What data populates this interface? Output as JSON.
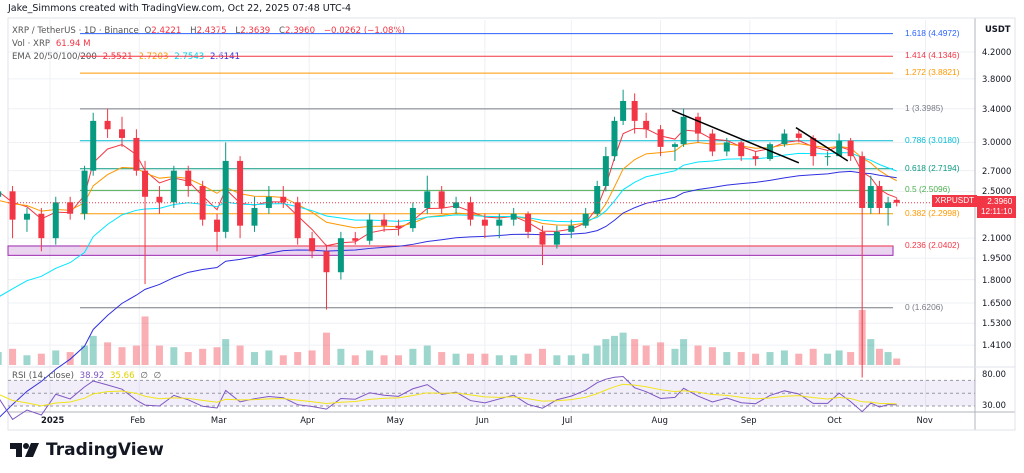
{
  "credit": "Jake_Simmons created with TradingView.com, Oct 22, 2025 07:48 UTC-4",
  "legend": {
    "symbol": "XRP / TetherUS · 1D · Binance",
    "o_label": "O",
    "o": "2.4221",
    "h_label": "H",
    "h": "2.4375",
    "l_label": "L",
    "l": "2.3639",
    "c_label": "C",
    "c": "2.3960",
    "change": "−0.0262 (−1.08%)",
    "vol_label": "Vol · XRP",
    "vol": "61.94 M",
    "ema_label": "EMA 20/50/100/200",
    "ema20": "2.5521",
    "ema50": "2.7203",
    "ema100": "2.7543",
    "ema200": "2.6141",
    "rsi_label": "RSI (14, close)",
    "rsi": "38.92",
    "rsi_ma": "35.66",
    "rsi_extra1": "∅",
    "rsi_extra2": "∅"
  },
  "price_axis": {
    "unit": "USDT",
    "ticks": [
      "4.2000",
      "3.8000",
      "3.4000",
      "3.0000",
      "2.7000",
      "2.5000",
      "2.1000",
      "1.9500",
      "1.8000",
      "1.6500",
      "1.5300",
      "1.4100"
    ],
    "rsi_ticks": [
      "80.00",
      "30.00"
    ]
  },
  "price_tag": {
    "symbol": "XRPUSDT",
    "price": "2.3960",
    "countdown": "12:11:10"
  },
  "time_axis": [
    "2025",
    "Feb",
    "Mar",
    "Apr",
    "May",
    "Jun",
    "Jul",
    "Aug",
    "Sep",
    "Oct",
    "Nov"
  ],
  "fib_levels": [
    {
      "label": "1.618 (4.4972)",
      "price": 4.4972,
      "color": "#2962ff"
    },
    {
      "label": "1.414 (4.1346)",
      "price": 4.1346,
      "color": "#f23645"
    },
    {
      "label": "1.272 (3.8821)",
      "price": 3.8821,
      "color": "#ff9800"
    },
    {
      "label": "1 (3.3985)",
      "price": 3.3985,
      "color": "#787b86"
    },
    {
      "label": "0.786 (3.0180)",
      "price": 3.018,
      "color": "#00bcd4"
    },
    {
      "label": "0.618 (2.7194)",
      "price": 2.7194,
      "color": "#089981"
    },
    {
      "label": "0.5 (2.5096)",
      "price": 2.5096,
      "color": "#4caf50"
    },
    {
      "label": "0.382 (2.2998)",
      "price": 2.2998,
      "color": "#ff9800"
    },
    {
      "label": "0.236 (2.0402)",
      "price": 2.0402,
      "color": "#f23645"
    },
    {
      "label": "0 (1.6206)",
      "price": 1.6206,
      "color": "#787b86"
    }
  ],
  "colors": {
    "up": "#089981",
    "down": "#f23645",
    "ema20": "#f23645",
    "ema50": "#ff9800",
    "ema100": "#00e5ff",
    "ema200": "#3030e0",
    "rsi": "#7e57c2",
    "rsi_ma": "#f2e41a",
    "zone": "#9c27b0"
  },
  "logo": "TradingView",
  "chart_data": {
    "type": "candlestick",
    "scale": "log",
    "ylim": [
      1.35,
      4.6
    ],
    "support_zone": [
      1.97,
      2.04
    ],
    "trendlines": [
      [
        [
          "2025-08-05",
          3.38
        ],
        [
          "2025-09-18",
          2.78
        ]
      ],
      [
        [
          "2025-09-17",
          3.17
        ],
        [
          "2025-10-05",
          2.8
        ]
      ]
    ],
    "candles": [
      [
        "2024-12-14",
        2.45,
        2.6,
        2.3,
        2.5,
        40
      ],
      [
        "2024-12-19",
        2.5,
        2.55,
        2.1,
        2.25,
        50
      ],
      [
        "2024-12-24",
        2.25,
        2.35,
        2.15,
        2.3,
        30
      ],
      [
        "2024-12-29",
        2.3,
        2.35,
        2.0,
        2.1,
        35
      ],
      [
        "2025-01-03",
        2.1,
        2.45,
        2.05,
        2.4,
        45
      ],
      [
        "2025-01-08",
        2.4,
        2.45,
        2.25,
        2.3,
        40
      ],
      [
        "2025-01-13",
        2.3,
        2.75,
        2.25,
        2.7,
        60
      ],
      [
        "2025-01-16",
        2.7,
        3.35,
        2.65,
        3.25,
        90
      ],
      [
        "2025-01-21",
        3.25,
        3.4,
        3.05,
        3.15,
        70
      ],
      [
        "2025-01-26",
        3.15,
        3.3,
        2.95,
        3.05,
        55
      ],
      [
        "2025-01-31",
        3.05,
        3.15,
        2.65,
        2.7,
        60
      ],
      [
        "2025-02-03",
        2.7,
        2.8,
        1.77,
        2.45,
        150
      ],
      [
        "2025-02-08",
        2.45,
        2.55,
        2.3,
        2.4,
        60
      ],
      [
        "2025-02-13",
        2.4,
        2.75,
        2.35,
        2.7,
        55
      ],
      [
        "2025-02-18",
        2.7,
        2.75,
        2.45,
        2.55,
        40
      ],
      [
        "2025-02-23",
        2.55,
        2.6,
        2.2,
        2.25,
        50
      ],
      [
        "2025-02-28",
        2.25,
        2.3,
        2.0,
        2.15,
        55
      ],
      [
        "2025-03-03",
        2.15,
        3.0,
        2.1,
        2.8,
        80
      ],
      [
        "2025-03-08",
        2.8,
        2.85,
        2.1,
        2.2,
        60
      ],
      [
        "2025-03-13",
        2.2,
        2.45,
        2.15,
        2.35,
        40
      ],
      [
        "2025-03-18",
        2.35,
        2.55,
        2.3,
        2.45,
        45
      ],
      [
        "2025-03-23",
        2.45,
        2.55,
        2.35,
        2.4,
        30
      ],
      [
        "2025-03-28",
        2.4,
        2.45,
        2.05,
        2.1,
        40
      ],
      [
        "2025-04-02",
        2.1,
        2.15,
        1.95,
        2.0,
        45
      ],
      [
        "2025-04-07",
        2.0,
        2.05,
        1.61,
        1.85,
        100
      ],
      [
        "2025-04-12",
        1.85,
        2.15,
        1.8,
        2.1,
        50
      ],
      [
        "2025-04-17",
        2.1,
        2.15,
        2.05,
        2.08,
        30
      ],
      [
        "2025-04-22",
        2.08,
        2.3,
        2.05,
        2.25,
        45
      ],
      [
        "2025-04-27",
        2.25,
        2.3,
        2.15,
        2.2,
        30
      ],
      [
        "2025-05-02",
        2.2,
        2.25,
        2.12,
        2.18,
        30
      ],
      [
        "2025-05-07",
        2.18,
        2.4,
        2.15,
        2.35,
        50
      ],
      [
        "2025-05-12",
        2.35,
        2.65,
        2.3,
        2.5,
        60
      ],
      [
        "2025-05-17",
        2.5,
        2.55,
        2.3,
        2.35,
        40
      ],
      [
        "2025-05-22",
        2.35,
        2.45,
        2.3,
        2.4,
        35
      ],
      [
        "2025-05-27",
        2.4,
        2.45,
        2.2,
        2.25,
        35
      ],
      [
        "2025-06-01",
        2.25,
        2.3,
        2.1,
        2.2,
        35
      ],
      [
        "2025-06-06",
        2.2,
        2.3,
        2.1,
        2.25,
        30
      ],
      [
        "2025-06-11",
        2.25,
        2.35,
        2.2,
        2.3,
        30
      ],
      [
        "2025-06-16",
        2.3,
        2.32,
        2.1,
        2.15,
        35
      ],
      [
        "2025-06-21",
        2.15,
        2.2,
        1.9,
        2.05,
        50
      ],
      [
        "2025-06-26",
        2.05,
        2.2,
        2.02,
        2.15,
        30
      ],
      [
        "2025-07-01",
        2.15,
        2.25,
        2.1,
        2.2,
        30
      ],
      [
        "2025-07-06",
        2.2,
        2.35,
        2.18,
        2.3,
        35
      ],
      [
        "2025-07-10",
        2.3,
        2.6,
        2.28,
        2.55,
        60
      ],
      [
        "2025-07-13",
        2.55,
        2.95,
        2.5,
        2.85,
        80
      ],
      [
        "2025-07-16",
        2.85,
        3.3,
        2.8,
        3.25,
        90
      ],
      [
        "2025-07-19",
        3.25,
        3.65,
        3.2,
        3.5,
        100
      ],
      [
        "2025-07-23",
        3.5,
        3.6,
        3.1,
        3.25,
        80
      ],
      [
        "2025-07-27",
        3.25,
        3.35,
        3.05,
        3.15,
        60
      ],
      [
        "2025-08-01",
        3.15,
        3.2,
        2.85,
        2.95,
        70
      ],
      [
        "2025-08-06",
        2.95,
        3.0,
        2.8,
        2.98,
        50
      ],
      [
        "2025-08-09",
        2.98,
        3.4,
        2.95,
        3.3,
        80
      ],
      [
        "2025-08-14",
        3.3,
        3.35,
        3.0,
        3.1,
        60
      ],
      [
        "2025-08-19",
        3.1,
        3.15,
        2.85,
        2.9,
        55
      ],
      [
        "2025-08-24",
        2.9,
        3.05,
        2.85,
        3.0,
        40
      ],
      [
        "2025-08-29",
        3.0,
        3.02,
        2.8,
        2.85,
        40
      ],
      [
        "2025-09-03",
        2.85,
        2.9,
        2.75,
        2.82,
        35
      ],
      [
        "2025-09-08",
        2.82,
        3.0,
        2.8,
        2.98,
        40
      ],
      [
        "2025-09-13",
        2.98,
        3.15,
        2.95,
        3.1,
        45
      ],
      [
        "2025-09-18",
        3.1,
        3.15,
        3.0,
        3.05,
        35
      ],
      [
        "2025-09-23",
        3.05,
        3.08,
        2.75,
        2.85,
        50
      ],
      [
        "2025-09-28",
        2.85,
        2.9,
        2.75,
        2.85,
        35
      ],
      [
        "2025-10-02",
        2.85,
        3.1,
        2.85,
        3.02,
        45
      ],
      [
        "2025-10-06",
        3.02,
        3.05,
        2.8,
        2.85,
        40
      ],
      [
        "2025-10-10",
        2.85,
        2.9,
        1.25,
        2.35,
        170
      ],
      [
        "2025-10-13",
        2.35,
        2.65,
        2.3,
        2.55,
        80
      ],
      [
        "2025-10-16",
        2.55,
        2.6,
        2.3,
        2.35,
        50
      ],
      [
        "2025-10-19",
        2.35,
        2.45,
        2.2,
        2.4,
        40
      ],
      [
        "2025-10-22",
        2.4221,
        2.4375,
        2.3639,
        2.396,
        20
      ]
    ]
  }
}
